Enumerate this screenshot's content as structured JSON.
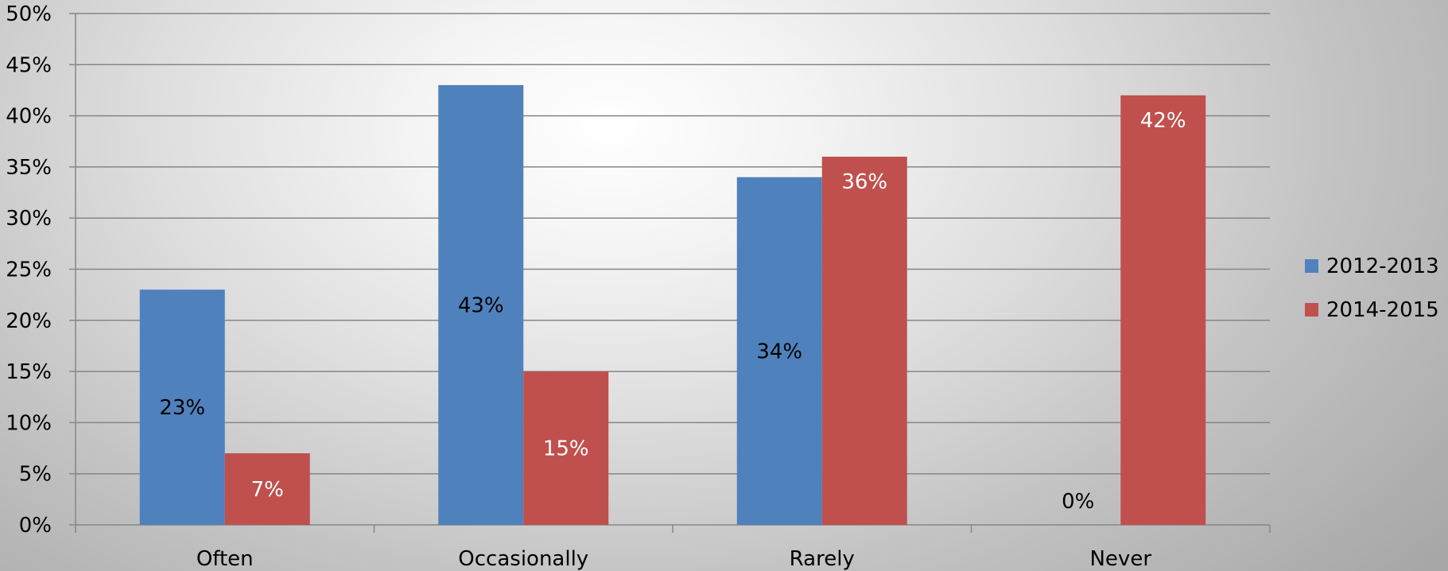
{
  "chart_data": {
    "type": "bar",
    "categories": [
      "Often",
      "Occasionally",
      "Rarely",
      "Never"
    ],
    "series": [
      {
        "name": "2012-2013",
        "values": [
          23,
          43,
          34,
          0
        ],
        "color": "#4f81bd",
        "data_labels": [
          "23%",
          "43%",
          "34%",
          "0%"
        ]
      },
      {
        "name": "2014-2015",
        "values": [
          7,
          15,
          36,
          42
        ],
        "color": "#c0504d",
        "data_labels": [
          "7%",
          "15%",
          "36%",
          "42%"
        ]
      }
    ],
    "ylim": [
      0,
      50
    ],
    "ytick_step": 5,
    "ytick_labels": [
      "0%",
      "5%",
      "10%",
      "15%",
      "20%",
      "25%",
      "30%",
      "35%",
      "40%",
      "45%",
      "50%"
    ],
    "grid": true,
    "legend_position": "right",
    "title": "",
    "xlabel": "",
    "ylabel": ""
  }
}
